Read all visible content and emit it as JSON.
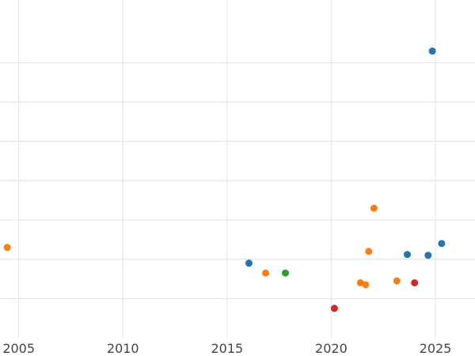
{
  "chart_data": {
    "type": "scatter",
    "title": "",
    "xlabel": "",
    "ylabel": "",
    "xlim": [
      2004.1,
      2026.9
    ],
    "ylim": [
      0,
      8.6
    ],
    "grid": true,
    "x_ticks": [
      2005,
      2010,
      2015,
      2020,
      2025
    ],
    "x_tick_labels": [
      "2005",
      "2010",
      "2015",
      "2020",
      "2025"
    ],
    "y_ticks": [
      1,
      2,
      3,
      4,
      5,
      6,
      7
    ],
    "y_tick_labels": [],
    "colors": {
      "blue": "#1f77b4",
      "orange": "#ff7f0e",
      "green": "#2ca02c",
      "red": "#d62728"
    },
    "series": [
      {
        "color": "#1f77b4",
        "points": [
          [
            2016.05,
            1.9
          ],
          [
            2023.65,
            2.12
          ],
          [
            2024.65,
            2.1
          ],
          [
            2025.3,
            2.4
          ],
          [
            2024.85,
            7.3
          ]
        ]
      },
      {
        "color": "#ff7f0e",
        "points": [
          [
            2004.45,
            2.3
          ],
          [
            2016.85,
            1.65
          ],
          [
            2021.4,
            1.4
          ],
          [
            2021.65,
            1.35
          ],
          [
            2021.8,
            2.2
          ],
          [
            2022.05,
            3.3
          ],
          [
            2023.15,
            1.45
          ]
        ]
      },
      {
        "color": "#2ca02c",
        "points": [
          [
            2017.8,
            1.65
          ]
        ]
      },
      {
        "color": "#d62728",
        "points": [
          [
            2020.15,
            0.75
          ],
          [
            2024.0,
            1.4
          ]
        ]
      }
    ]
  }
}
